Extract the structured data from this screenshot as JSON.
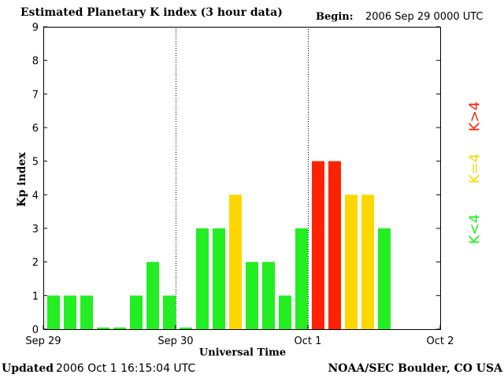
{
  "title": "Estimated Planetary K index (3 hour data)",
  "begin": {
    "label": "Begin:",
    "value": "2006 Sep 29 0000 UTC"
  },
  "footer": {
    "updated_label": "Updated",
    "updated_value": "2006 Oct  1 16:15:04 UTC",
    "source": "NOAA/SEC Boulder, CO USA"
  },
  "legend": {
    "low": "K<4",
    "mid": "K=4",
    "high": "K>4"
  },
  "colors": {
    "low": "#22ee22",
    "mid": "#ffd700",
    "high": "#ff2200"
  },
  "chart_data": {
    "type": "bar",
    "title": "Estimated Planetary K index (3 hour data)",
    "xlabel": "Universal Time",
    "ylabel": "Kp index",
    "ylim": [
      0,
      9
    ],
    "yticks": [
      "0",
      "1",
      "2",
      "3",
      "4",
      "5",
      "6",
      "7",
      "8",
      "9"
    ],
    "xticks": [
      "Sep 29",
      "Sep 30",
      "Oct 1",
      "Oct 2"
    ],
    "interval": "3 hour",
    "categories": [
      "Sep 29 00",
      "Sep 29 03",
      "Sep 29 06",
      "Sep 29 09",
      "Sep 29 12",
      "Sep 29 15",
      "Sep 29 18",
      "Sep 29 21",
      "Sep 30 00",
      "Sep 30 03",
      "Sep 30 06",
      "Sep 30 09",
      "Sep 30 12",
      "Sep 30 15",
      "Sep 30 18",
      "Sep 30 21",
      "Oct 1 00",
      "Oct 1 03",
      "Oct 1 06",
      "Oct 1 09",
      "Oct 1 12"
    ],
    "values": [
      1,
      1,
      1,
      0.05,
      0.05,
      1,
      2,
      1,
      0.05,
      3,
      3,
      4,
      2,
      2,
      1,
      3,
      5,
      5,
      4,
      4,
      3
    ],
    "grid": "dotted vertical lines at day boundaries",
    "legend_placement": "right"
  }
}
